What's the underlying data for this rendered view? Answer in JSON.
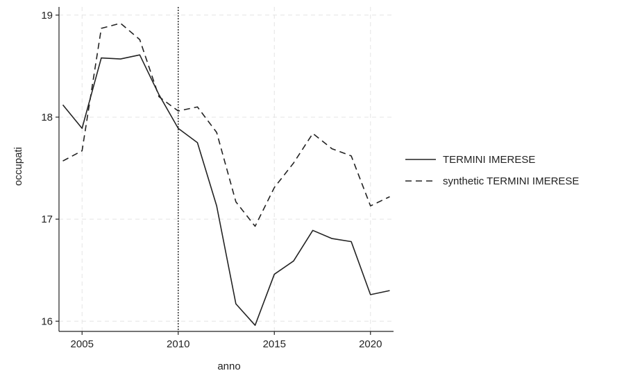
{
  "chart_data": {
    "type": "line",
    "xlabel": "anno",
    "ylabel": "occupati",
    "xlim": [
      2003.8,
      2021.2
    ],
    "ylim": [
      15.9,
      19.08
    ],
    "xticks": [
      2005,
      2010,
      2015,
      2020
    ],
    "yticks": [
      16,
      17,
      18,
      19
    ],
    "grid": true,
    "legend_position": "right",
    "reference_line": {
      "x": 2010,
      "style": "dotted"
    },
    "x": [
      2004,
      2005,
      2006,
      2007,
      2008,
      2009,
      2010,
      2011,
      2012,
      2013,
      2014,
      2015,
      2016,
      2017,
      2018,
      2019,
      2020,
      2021
    ],
    "series": [
      {
        "name": "TERMINI IMERESE",
        "style": "solid",
        "color": "#222222",
        "values": [
          18.12,
          17.89,
          18.58,
          18.57,
          18.61,
          18.22,
          17.89,
          17.75,
          17.13,
          16.17,
          15.96,
          16.46,
          16.59,
          16.89,
          16.81,
          16.78,
          16.26,
          16.3
        ]
      },
      {
        "name": "synthetic TERMINI IMERESE",
        "style": "dashed",
        "color": "#222222",
        "values": [
          17.57,
          17.67,
          18.87,
          18.92,
          18.76,
          18.2,
          18.06,
          18.1,
          17.85,
          17.17,
          16.93,
          17.31,
          17.55,
          17.84,
          17.69,
          17.62,
          17.13,
          17.22
        ]
      }
    ]
  }
}
